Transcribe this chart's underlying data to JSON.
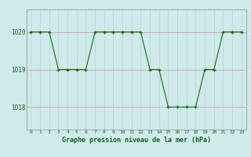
{
  "x": [
    0,
    1,
    2,
    3,
    4,
    5,
    6,
    7,
    8,
    9,
    10,
    11,
    12,
    13,
    14,
    15,
    16,
    17,
    18,
    19,
    20,
    21,
    22,
    23
  ],
  "y": [
    1020,
    1020,
    1020,
    1019,
    1019,
    1019,
    1019,
    1020,
    1020,
    1020,
    1020,
    1020,
    1020,
    1019,
    1019,
    1018,
    1018,
    1018,
    1018,
    1019,
    1019,
    1020,
    1020,
    1020
  ],
  "line_color": "#1a6b1a",
  "marker_color": "#1a6b1a",
  "bg_color": "#ceeaea",
  "grid_color": "#b8d4d4",
  "ylabel_ticks": [
    1018,
    1019,
    1020
  ],
  "xlabel_ticks": [
    0,
    1,
    2,
    3,
    4,
    5,
    6,
    7,
    8,
    9,
    10,
    11,
    12,
    13,
    14,
    15,
    16,
    17,
    18,
    19,
    20,
    21,
    22,
    23
  ],
  "title": "Graphe pression niveau de la mer (hPa)",
  "title_color": "#1a5c1a",
  "xlim": [
    -0.5,
    23.5
  ],
  "ylim": [
    1017.4,
    1020.6
  ]
}
